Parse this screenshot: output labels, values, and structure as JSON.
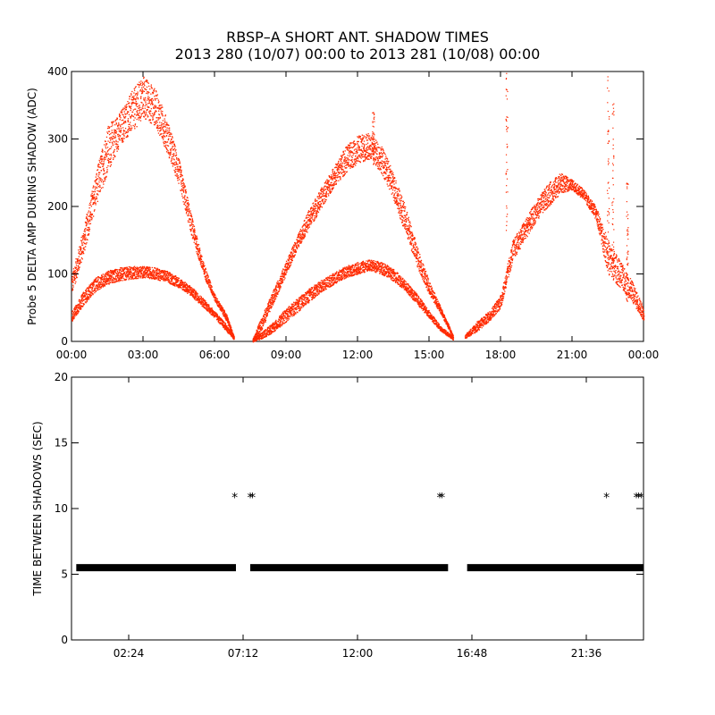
{
  "title_line1": "RBSP–A SHORT ANT. SHADOW TIMES",
  "title_line2": "2013 280 (10/07) 00:00 to 2013 281 (10/08) 00:00",
  "colors": {
    "top_series": "#ff2a00",
    "bottom_series": "#000000",
    "axes": "#000000"
  },
  "chart_data": [
    {
      "type": "scatter",
      "title": "",
      "xlabel": "",
      "ylabel": "Probe 5 DELTA AMP DURING SHADOW (ADC)",
      "xlim_hours": [
        0,
        24
      ],
      "ylim": [
        0,
        400
      ],
      "x_tick_hours": [
        0,
        3,
        6,
        9,
        12,
        15,
        18,
        21,
        24
      ],
      "x_tick_labels": [
        "00:00",
        "03:00",
        "06:00",
        "09:00",
        "12:00",
        "15:00",
        "18:00",
        "21:00",
        "00:00"
      ],
      "y_ticks": [
        0,
        100,
        200,
        300,
        400
      ],
      "y_tick_labels": [
        "0",
        "100",
        "200",
        "300",
        "400"
      ],
      "grid": false,
      "series_color": "#ff2a00",
      "envelopes": [
        {
          "band": "upper",
          "x_hours": [
            0.0,
            0.5,
            1.0,
            1.5,
            2.0,
            2.5,
            3.0,
            3.5,
            4.0,
            4.5,
            5.0,
            5.5,
            6.0,
            6.5,
            6.8
          ],
          "y_low": [
            70,
            130,
            200,
            250,
            290,
            310,
            330,
            320,
            280,
            230,
            160,
            100,
            60,
            30,
            5
          ],
          "y_high": [
            100,
            170,
            250,
            320,
            340,
            370,
            395,
            375,
            330,
            270,
            190,
            120,
            70,
            40,
            8
          ]
        },
        {
          "band": "lower",
          "x_hours": [
            0.0,
            0.5,
            1.0,
            1.5,
            2.0,
            2.5,
            3.0,
            3.5,
            4.0,
            4.5,
            5.0,
            5.5,
            6.0,
            6.5,
            6.8
          ],
          "y_low": [
            30,
            55,
            75,
            85,
            90,
            93,
            95,
            93,
            88,
            80,
            68,
            52,
            35,
            15,
            3
          ],
          "y_high": [
            45,
            75,
            95,
            105,
            110,
            112,
            112,
            110,
            105,
            95,
            82,
            65,
            45,
            25,
            8
          ]
        },
        {
          "band": "upper",
          "x_hours": [
            7.6,
            8.0,
            8.5,
            9.0,
            9.5,
            10.0,
            10.5,
            11.0,
            11.5,
            12.0,
            12.5,
            13.0,
            13.5,
            14.0,
            14.5,
            15.0,
            15.5,
            16.0
          ],
          "y_low": [
            0,
            20,
            60,
            100,
            140,
            170,
            200,
            230,
            250,
            265,
            270,
            250,
            210,
            160,
            110,
            70,
            40,
            5
          ],
          "y_high": [
            5,
            40,
            80,
            120,
            160,
            200,
            230,
            260,
            290,
            305,
            310,
            290,
            250,
            200,
            140,
            90,
            50,
            10
          ]
        },
        {
          "band": "lower",
          "x_hours": [
            7.6,
            8.0,
            8.5,
            9.0,
            9.5,
            10.0,
            10.5,
            11.0,
            11.5,
            12.0,
            12.5,
            13.0,
            13.5,
            14.0,
            14.5,
            15.0,
            15.5,
            16.0
          ],
          "y_low": [
            0,
            5,
            15,
            30,
            45,
            60,
            75,
            85,
            95,
            100,
            105,
            100,
            90,
            75,
            55,
            35,
            15,
            3
          ],
          "y_high": [
            5,
            15,
            30,
            50,
            65,
            80,
            92,
            102,
            112,
            118,
            122,
            118,
            108,
            90,
            70,
            45,
            22,
            8
          ]
        },
        {
          "band": "single",
          "x_hours": [
            16.5,
            17.0,
            17.5,
            18.0,
            18.5,
            19.0,
            19.5,
            20.0,
            20.5,
            21.0,
            21.5,
            22.0,
            22.5,
            23.0,
            23.5,
            24.0
          ],
          "y_low": [
            5,
            15,
            30,
            50,
            120,
            150,
            180,
            200,
            220,
            225,
            210,
            180,
            100,
            80,
            60,
            30
          ],
          "y_high": [
            10,
            30,
            45,
            70,
            150,
            180,
            210,
            235,
            250,
            240,
            225,
            200,
            150,
            120,
            90,
            50
          ]
        }
      ],
      "spikes": [
        {
          "x_hour": 18.25,
          "y_range": [
            150,
            400
          ]
        },
        {
          "x_hour": 22.5,
          "y_range": [
            130,
            400
          ]
        },
        {
          "x_hour": 22.7,
          "y_range": [
            110,
            390
          ]
        },
        {
          "x_hour": 23.3,
          "y_range": [
            60,
            240
          ]
        },
        {
          "x_hour": 12.65,
          "y_range": [
            260,
            340
          ]
        }
      ]
    },
    {
      "type": "scatter",
      "title": "",
      "xlabel": "",
      "ylabel": "TIME BETWEEN SHADOWS (SEC)",
      "xlim_hours": [
        0,
        24
      ],
      "ylim": [
        0,
        20
      ],
      "x_tick_hours": [
        2.4,
        7.2,
        12.0,
        16.8,
        21.6
      ],
      "x_tick_labels": [
        "02:24",
        "07:12",
        "12:00",
        "16:48",
        "21:36"
      ],
      "y_ticks": [
        0,
        5,
        10,
        15,
        20
      ],
      "y_tick_labels": [
        "0",
        "5",
        "10",
        "15",
        "20"
      ],
      "grid": false,
      "series_color": "#000000",
      "marker": "*",
      "baseline_value": 5.5,
      "baseline_segments_hours": [
        [
          0.2,
          6.9
        ],
        [
          7.5,
          15.8
        ],
        [
          16.6,
          24.0
        ]
      ],
      "points": [
        {
          "x_hour": 6.85,
          "y": 11
        },
        {
          "x_hour": 7.5,
          "y": 11
        },
        {
          "x_hour": 7.6,
          "y": 11
        },
        {
          "x_hour": 15.45,
          "y": 11
        },
        {
          "x_hour": 15.55,
          "y": 11
        },
        {
          "x_hour": 22.45,
          "y": 11
        },
        {
          "x_hour": 23.7,
          "y": 11
        },
        {
          "x_hour": 23.8,
          "y": 11
        },
        {
          "x_hour": 23.9,
          "y": 11
        }
      ]
    }
  ]
}
